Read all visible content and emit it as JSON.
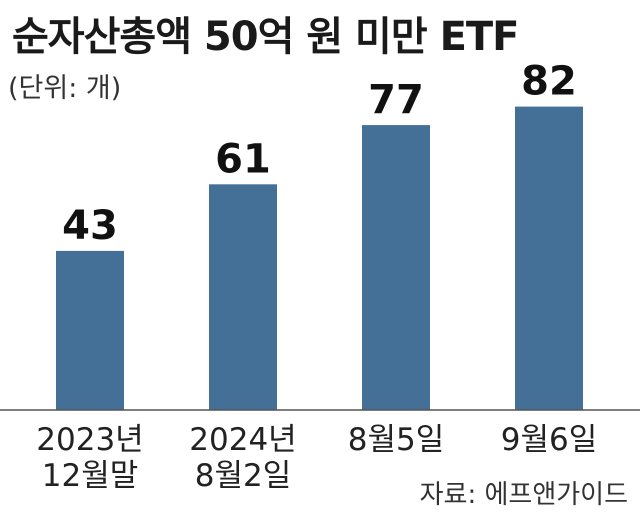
{
  "chart_data": {
    "type": "bar",
    "title": "순자산총액 50억 원 미만 ETF",
    "unit_label": "(단위: 개)",
    "source": "자료: 에프앤가이드",
    "categories": [
      [
        "2023년",
        "12월말"
      ],
      [
        "2024년",
        "8월2일"
      ],
      [
        "8월5일"
      ],
      [
        "9월6일"
      ]
    ],
    "values": [
      43,
      61,
      77,
      82
    ],
    "data_labels": [
      "43",
      "61",
      "77",
      "82"
    ],
    "bar_color": "#446f96",
    "ylim": [
      0,
      100
    ],
    "grid": false
  }
}
